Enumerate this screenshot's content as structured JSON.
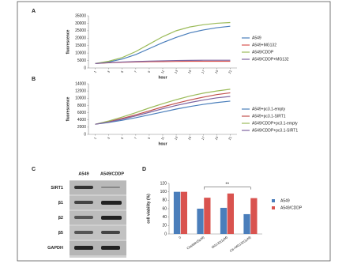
{
  "panel_labels": [
    "A",
    "B",
    "C",
    "D"
  ],
  "chart_data": [
    {
      "type": "line",
      "xlabel": "hour",
      "ylabel": "fluorescence",
      "x": [
        1,
        3,
        5,
        7,
        9,
        11,
        13,
        15,
        17,
        19,
        21
      ],
      "xlim": [
        0,
        22
      ],
      "xticks": [
        1,
        3,
        5,
        7,
        9,
        11,
        13,
        15,
        17,
        19,
        21
      ],
      "ylim": [
        0,
        35000
      ],
      "yticks": [
        0,
        5000,
        10000,
        15000,
        20000,
        25000,
        30000,
        35000
      ],
      "series": [
        {
          "name": "A549",
          "color": "#4a7ebb",
          "values": [
            3000,
            4000,
            6000,
            9000,
            13000,
            17000,
            20500,
            23500,
            25500,
            27000,
            28000
          ]
        },
        {
          "name": "A549+MG132",
          "color": "#d9534f",
          "values": [
            3000,
            3500,
            3800,
            4000,
            4200,
            4300,
            4400,
            4500,
            4500,
            4500,
            4500
          ]
        },
        {
          "name": "A549/CDDP",
          "color": "#9bbb59",
          "values": [
            3000,
            4500,
            7000,
            11000,
            16000,
            21000,
            25000,
            27500,
            29000,
            30000,
            30500
          ]
        },
        {
          "name": "A549/CDDP+MG132",
          "color": "#7e64a0",
          "values": [
            3000,
            3600,
            4000,
            4300,
            4600,
            4800,
            5000,
            5100,
            5200,
            5200,
            5200
          ]
        }
      ]
    },
    {
      "type": "line",
      "xlabel": "hour",
      "ylabel": "fluorescence",
      "x": [
        1,
        3,
        5,
        7,
        9,
        11,
        13,
        15,
        17,
        19,
        21
      ],
      "xlim": [
        0,
        22
      ],
      "xticks": [
        1,
        3,
        5,
        7,
        9,
        11,
        13,
        15,
        17,
        19,
        21
      ],
      "ylim": [
        0,
        14000
      ],
      "yticks": [
        0,
        2000,
        4000,
        6000,
        8000,
        10000,
        12000,
        14000
      ],
      "series": [
        {
          "name": "A549+pc3.1-empty",
          "color": "#4a7ebb",
          "values": [
            2800,
            3300,
            3900,
            4600,
            5400,
            6200,
            7000,
            7700,
            8300,
            8800,
            9200
          ]
        },
        {
          "name": "A549+pc3.1-SIRT1",
          "color": "#c0504d",
          "values": [
            2800,
            3500,
            4400,
            5400,
            6500,
            7600,
            8600,
            9500,
            10300,
            11000,
            11500
          ]
        },
        {
          "name": "A549/CDDP+pc3.1-empty",
          "color": "#9bbb59",
          "values": [
            2800,
            3700,
            4800,
            6000,
            7300,
            8500,
            9600,
            10600,
            11400,
            12000,
            12500
          ]
        },
        {
          "name": "A549/CDDP+pc3.1-SIRT1",
          "color": "#7e64a0",
          "values": [
            2800,
            3400,
            4200,
            5100,
            6100,
            7100,
            8000,
            8800,
            9500,
            10100,
            10500
          ]
        }
      ]
    },
    {
      "type": "bar",
      "ylabel": "cell viability (%)",
      "categories": [
        "0",
        "Cisplatin(5μM)",
        "MG132(1μM)",
        "Cis+MG132(1μM)"
      ],
      "ylim": [
        0,
        120
      ],
      "yticks": [
        0,
        20,
        40,
        60,
        80,
        100,
        120
      ],
      "annotation": "**",
      "series": [
        {
          "name": "A549",
          "color": "#4a7ebb",
          "values": [
            100,
            60,
            62,
            47
          ]
        },
        {
          "name": "A549/CDDP",
          "color": "#d9534f",
          "values": [
            100,
            86,
            96,
            85
          ]
        }
      ]
    }
  ],
  "blot": {
    "columns": [
      "A549",
      "A549/CDDP"
    ],
    "rows": [
      "SIRT1",
      "β1",
      "β2",
      "β5",
      "GAPDH"
    ]
  }
}
